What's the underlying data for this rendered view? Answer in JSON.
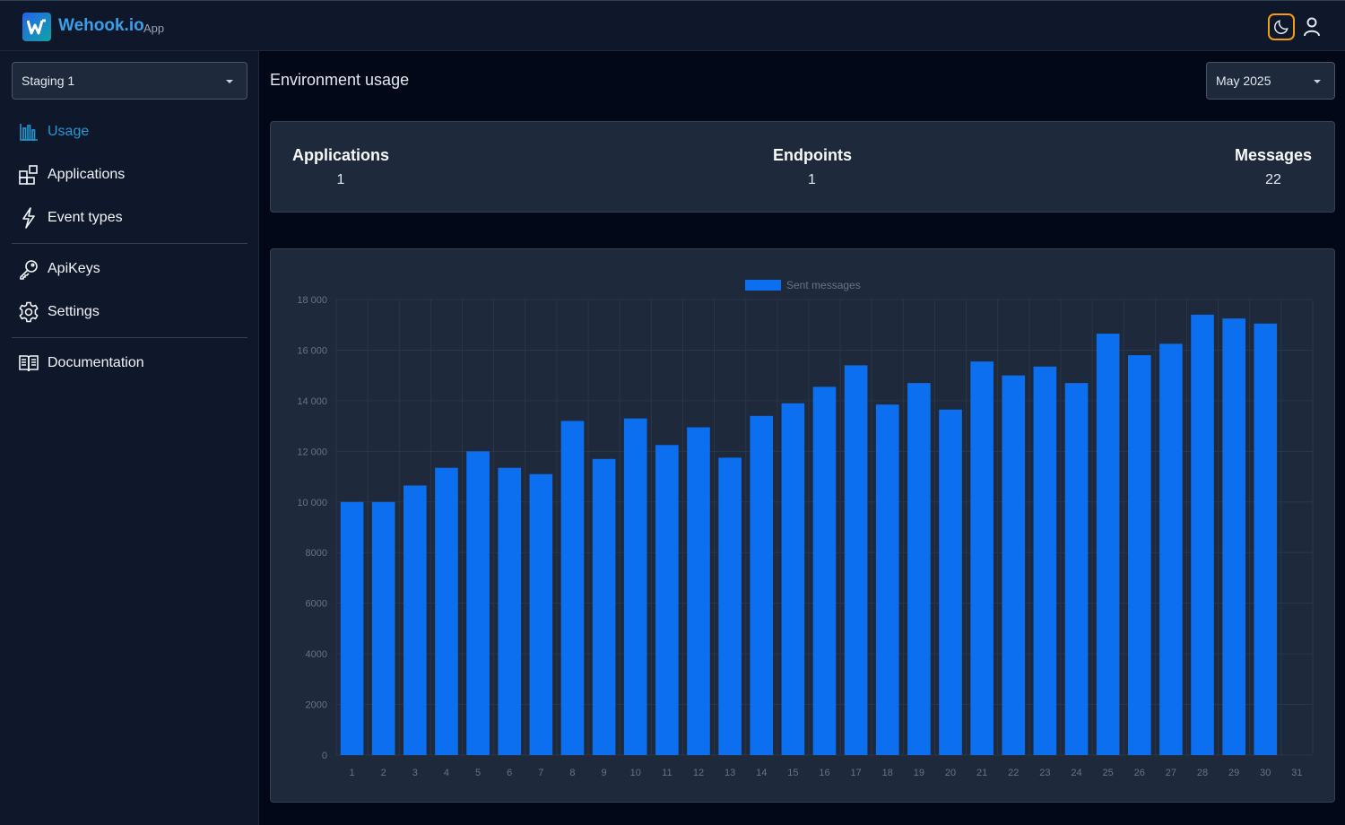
{
  "app": {
    "brand": "Wehook.io",
    "brand_suffix": "App"
  },
  "sidebar": {
    "environment_select": "Staging 1",
    "items": [
      {
        "label": "Usage",
        "icon": "chart-bar-icon",
        "active": true
      },
      {
        "label": "Applications",
        "icon": "applications-icon",
        "active": false
      },
      {
        "label": "Event types",
        "icon": "lightning-icon",
        "active": false
      },
      {
        "label": "ApiKeys",
        "icon": "key-icon",
        "active": false
      },
      {
        "label": "Settings",
        "icon": "gear-icon",
        "active": false
      },
      {
        "label": "Documentation",
        "icon": "book-icon",
        "active": false
      }
    ]
  },
  "main": {
    "title": "Environment usage",
    "month_select": "May 2025",
    "stats": [
      {
        "label": "Applications",
        "value": "1"
      },
      {
        "label": "Endpoints",
        "value": "1"
      },
      {
        "label": "Messages",
        "value": "22"
      }
    ]
  },
  "colors": {
    "accent": "#1e9ad6",
    "bar": "#0b6ff0",
    "background": "#020817",
    "panel": "#1e293b"
  },
  "chart_data": {
    "type": "bar",
    "legend": [
      "Sent messages"
    ],
    "legend_position": "top-center",
    "categories": [
      "1",
      "2",
      "3",
      "4",
      "5",
      "6",
      "7",
      "8",
      "9",
      "10",
      "11",
      "12",
      "13",
      "14",
      "15",
      "16",
      "17",
      "18",
      "19",
      "20",
      "21",
      "22",
      "23",
      "24",
      "25",
      "26",
      "27",
      "28",
      "29",
      "30",
      "31"
    ],
    "series": [
      {
        "name": "Sent messages",
        "values": [
          10000,
          10000,
          10650,
          11350,
          12000,
          11350,
          11100,
          13200,
          11700,
          13300,
          12250,
          12950,
          11750,
          13400,
          13900,
          14550,
          15400,
          13850,
          14700,
          13650,
          15550,
          15000,
          15350,
          14700,
          16650,
          15800,
          16250,
          17400,
          17250,
          17050,
          null
        ]
      }
    ],
    "ylim": [
      0,
      18000
    ],
    "yticks": [
      "0",
      "2000",
      "4000",
      "6000",
      "8000",
      "10 000",
      "12 000",
      "14 000",
      "16 000",
      "18 000"
    ],
    "grid": true
  }
}
